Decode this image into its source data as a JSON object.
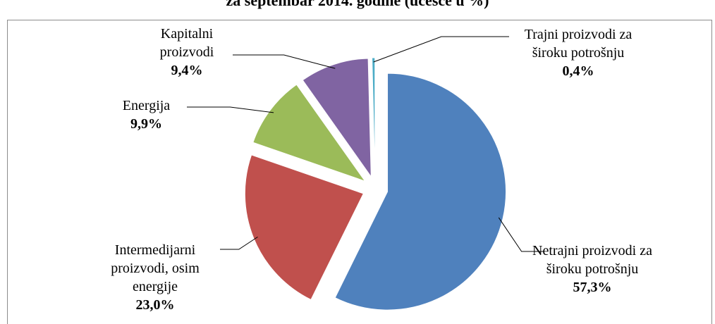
{
  "chart_data": {
    "type": "pie",
    "title": "za septembar 2014. godine (učešće u %)",
    "categories": [
      "Netrajni proizvodi za široku potrošnju",
      "Intermedijarni proizvodi, osim energije",
      "Energija",
      "Kapitalni proizvodi",
      "Trajni proizvodi za široku potrošnju"
    ],
    "values": [
      57.3,
      23.0,
      9.9,
      9.4,
      0.4
    ],
    "value_labels": [
      "57,3%",
      "23,0%",
      "9,9%",
      "9,4%",
      "0,4%"
    ],
    "colors": [
      "#4f81bd",
      "#c0504d",
      "#9bbb59",
      "#8064a2",
      "#4bacc6"
    ]
  }
}
